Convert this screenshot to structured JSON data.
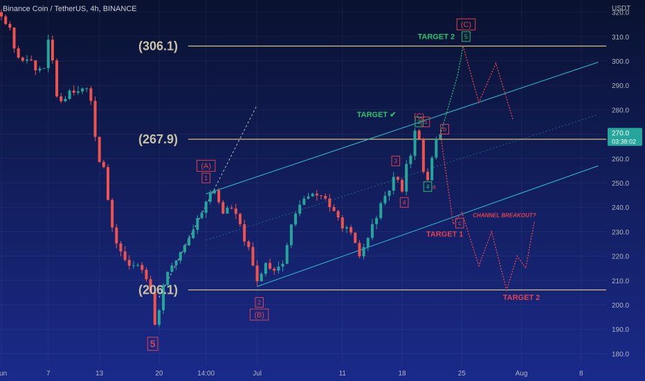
{
  "header": {
    "symbol_title": "Binance Coin / TetherUS, 4h, BINANCE",
    "currency": "USDT"
  },
  "price_badge": {
    "price": "270.0",
    "countdown": "03:38:02"
  },
  "colors": {
    "bg_top": "#0a1230",
    "bg_bottom": "#1a2a8a",
    "up": "#26a69a",
    "down": "#ef5350",
    "channel": "#2ec4d6",
    "level": "#d9c27a",
    "green_label": "#21c46b",
    "red_label": "#e0424f",
    "axis_text": "#b2b5be"
  },
  "chart_data": {
    "type": "candlestick",
    "y_axis": {
      "min": 175,
      "max": 325,
      "ticks": [
        180,
        190,
        200,
        210,
        220,
        230,
        240,
        250,
        260,
        270,
        280,
        290,
        300,
        310,
        320
      ],
      "tick_labels": [
        "180.0",
        "190.0",
        "200.0",
        "210.0",
        "220.0",
        "230.0",
        "240.0",
        "250.0",
        "260.0",
        "270.0",
        "280.0",
        "290.0",
        "300.0",
        "310.0",
        "320.0"
      ]
    },
    "x_axis": {
      "tick_labels": [
        "Jun",
        "7",
        "13",
        "20",
        "14:00",
        "Jul",
        "11",
        "18",
        "25",
        "Aug",
        "8"
      ],
      "tick_index": [
        0,
        11,
        23,
        37,
        48,
        60,
        80,
        94,
        108,
        122,
        136
      ]
    },
    "last_price": 270.0,
    "anchors": [
      [
        0,
        320
      ],
      [
        2,
        312
      ],
      [
        4,
        300
      ],
      [
        6,
        302
      ],
      [
        8,
        296
      ],
      [
        10,
        298
      ],
      [
        11,
        307
      ],
      [
        12,
        300
      ],
      [
        13,
        286
      ],
      [
        14,
        284
      ],
      [
        16,
        288
      ],
      [
        18,
        289
      ],
      [
        20,
        287
      ],
      [
        21,
        284
      ],
      [
        22,
        270
      ],
      [
        23,
        260
      ],
      [
        24,
        256
      ],
      [
        25,
        243
      ],
      [
        26,
        230
      ],
      [
        28,
        222
      ],
      [
        30,
        215
      ],
      [
        32,
        217
      ],
      [
        34,
        212
      ],
      [
        35,
        207
      ],
      [
        36,
        192
      ],
      [
        37,
        198
      ],
      [
        38,
        209
      ],
      [
        40,
        215
      ],
      [
        42,
        222
      ],
      [
        44,
        228
      ],
      [
        46,
        235
      ],
      [
        48,
        243
      ],
      [
        50,
        247
      ],
      [
        52,
        238
      ],
      [
        54,
        240
      ],
      [
        56,
        232
      ],
      [
        58,
        222
      ],
      [
        60,
        209
      ],
      [
        61,
        214
      ],
      [
        62,
        217
      ],
      [
        64,
        215
      ],
      [
        66,
        217
      ],
      [
        68,
        232
      ],
      [
        70,
        242
      ],
      [
        72,
        244
      ],
      [
        74,
        245
      ],
      [
        76,
        244
      ],
      [
        78,
        237
      ],
      [
        80,
        233
      ],
      [
        82,
        228
      ],
      [
        84,
        220
      ],
      [
        86,
        227
      ],
      [
        88,
        237
      ],
      [
        90,
        243
      ],
      [
        92,
        252
      ],
      [
        94,
        248
      ],
      [
        95,
        258
      ],
      [
        96,
        262
      ],
      [
        97,
        271
      ],
      [
        98,
        267
      ],
      [
        99,
        254
      ],
      [
        100,
        252
      ],
      [
        101,
        260
      ],
      [
        102,
        268
      ],
      [
        103,
        270
      ]
    ],
    "hlines": [
      {
        "label": "(306.1)",
        "price": 306.1
      },
      {
        "label": "(267.9)",
        "price": 267.9
      },
      {
        "label": "(206.1)",
        "price": 206.1
      }
    ],
    "channel": {
      "upper": [
        [
          48,
          245.5
        ],
        [
          140,
          299.5
        ]
      ],
      "lower": [
        [
          60,
          207.5
        ],
        [
          140,
          257
        ]
      ],
      "mid": [
        [
          48,
          226.5
        ],
        [
          140,
          278
        ]
      ]
    },
    "dotted_bull": [
      [
        103,
        270
      ],
      [
        107,
        294
      ],
      [
        108.3,
        306.1
      ]
    ],
    "dotted_bear": [
      [
        103,
        270
      ],
      [
        106,
        233
      ],
      [
        108,
        238
      ]
    ],
    "projection_up": [
      [
        108.3,
        306.1
      ],
      [
        112,
        283
      ],
      [
        116,
        299
      ],
      [
        120,
        276
      ]
    ],
    "projection_down": [
      [
        108,
        238
      ],
      [
        112,
        216
      ],
      [
        115,
        230
      ],
      [
        118.5,
        206
      ],
      [
        121,
        220
      ],
      [
        123,
        215
      ],
      [
        125,
        234
      ]
    ],
    "wave_labels": [
      {
        "text": "1",
        "x": 48,
        "price": 252,
        "color": "#e0424f",
        "boxed": true
      },
      {
        "text": "(A)",
        "x": 48,
        "price": 257,
        "color": "#e0424f",
        "boxed": true
      },
      {
        "text": "2",
        "x": 60.5,
        "price": 201,
        "color": "#e0424f",
        "boxed": true
      },
      {
        "text": "(B)",
        "x": 60.5,
        "price": 196,
        "color": "#e0424f",
        "boxed": true
      },
      {
        "text": "3",
        "x": 92.5,
        "price": 259,
        "color": "#e0424f",
        "boxed": true
      },
      {
        "text": "4",
        "x": 94.5,
        "price": 242,
        "color": "#e0424f",
        "boxed": true
      },
      {
        "text": "3",
        "x": 98,
        "price": 275,
        "color": "#21c46b",
        "boxed": true
      },
      {
        "text": "5",
        "x": 99.5,
        "price": 275,
        "color": "#e0424f",
        "boxed": true
      },
      {
        "text": "4",
        "x": 100,
        "price": 248.5,
        "color": "#21c46b",
        "boxed": true
      },
      {
        "text": "a",
        "x": 101.5,
        "price": 248.5,
        "color": "#e0424f",
        "boxed": false
      },
      {
        "text": "b",
        "x": 104,
        "price": 272,
        "color": "#e0424f",
        "boxed": true
      },
      {
        "text": "c",
        "x": 107.5,
        "price": 233.5,
        "color": "#e0424f",
        "boxed": true
      },
      {
        "text": "5",
        "x": 109,
        "price": 310,
        "color": "#21c46b",
        "boxed": true
      },
      {
        "text": "(C)",
        "x": 98,
        "price": 277.5,
        "color": "#e0424f",
        "boxed": false
      },
      {
        "text": "(C)",
        "x": 109,
        "price": 315,
        "color": "#e0424f",
        "boxed": true
      },
      {
        "text": "5",
        "x": 35.5,
        "price": 184,
        "color": "#e0424f",
        "boxed": true,
        "big": true
      }
    ],
    "annotations": [
      {
        "text": "TARGET 2",
        "x": 102,
        "price": 309,
        "color": "#21c46b"
      },
      {
        "text": "TARGET ✔",
        "x": 88,
        "price": 277,
        "color": "#21c46b"
      },
      {
        "text": "CHANNEL BREAKOUT?",
        "x": 118,
        "price": 236,
        "color": "#e0424f",
        "small": true
      },
      {
        "text": "TARGET 1",
        "x": 104,
        "price": 228,
        "color": "#e0424f"
      },
      {
        "text": "TARGET 2",
        "x": 122,
        "price": 202,
        "color": "#e0424f"
      }
    ]
  }
}
